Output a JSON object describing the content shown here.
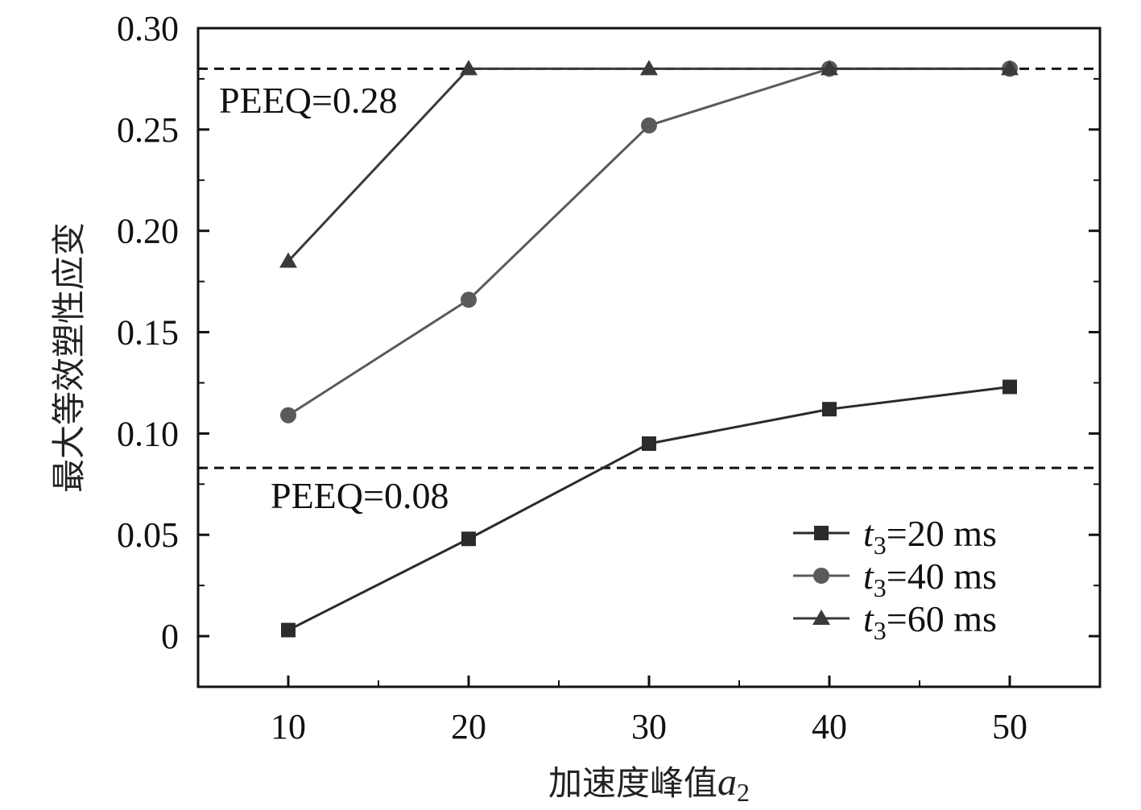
{
  "chart_data": {
    "type": "line",
    "x": [
      10,
      20,
      30,
      40,
      50
    ],
    "x_ticks": [
      "10",
      "20",
      "30",
      "40",
      "50"
    ],
    "y_ticks": [
      "0",
      "0.05",
      "0.10",
      "0.15",
      "0.20",
      "0.25",
      "0.30"
    ],
    "xlim": [
      5,
      55
    ],
    "ylim": [
      -0.025,
      0.3
    ],
    "xlabel_text": "加速度峰值",
    "xlabel_var": "a",
    "xlabel_sub": "2",
    "ylabel": "最大等效塑性应变",
    "series": [
      {
        "var": "t",
        "sub": "3",
        "rest": "=20 ms",
        "marker": "square",
        "color": "#2b2b2b",
        "values": [
          0.003,
          0.048,
          0.095,
          0.112,
          0.123
        ]
      },
      {
        "var": "t",
        "sub": "3",
        "rest": "=40 ms",
        "marker": "circle",
        "color": "#5a5a5a",
        "values": [
          0.109,
          0.166,
          0.252,
          0.28,
          0.28
        ]
      },
      {
        "var": "t",
        "sub": "3",
        "rest": "=60 ms",
        "marker": "triangle",
        "color": "#3a3a3a",
        "values": [
          0.185,
          0.28,
          0.28,
          0.28,
          0.28
        ]
      }
    ],
    "reference_lines": [
      {
        "value": 0.28,
        "label": "PEEQ=0.28"
      },
      {
        "value": 0.083,
        "label": "PEEQ=0.08"
      }
    ],
    "legend_position": "bottom-right",
    "grid": false
  }
}
